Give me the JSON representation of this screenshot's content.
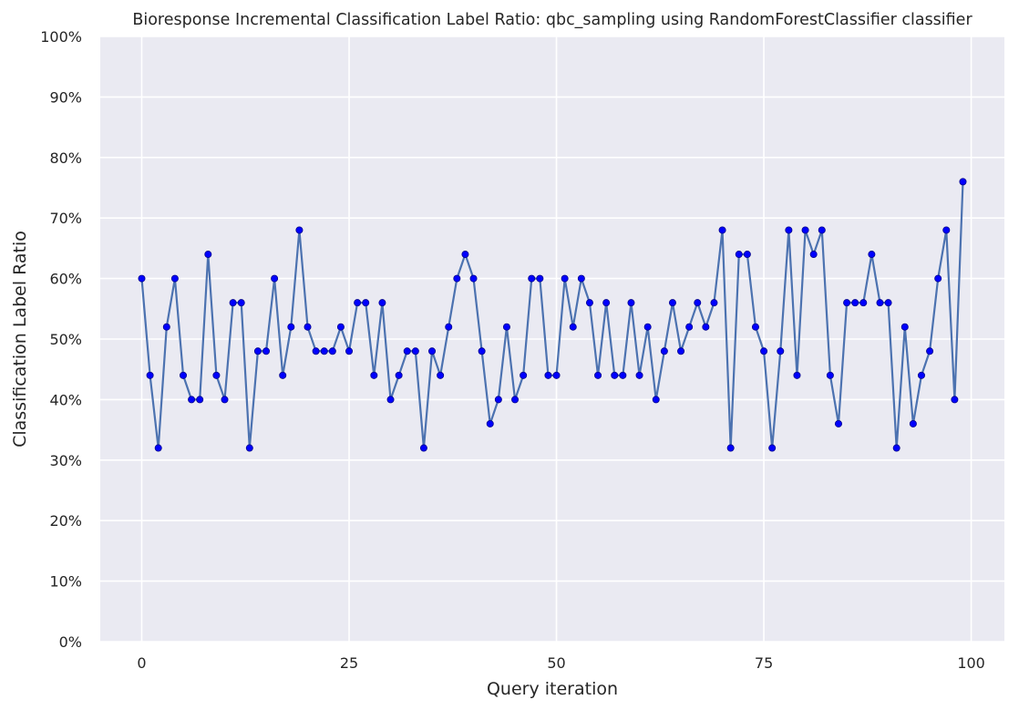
{
  "chart_data": {
    "type": "line",
    "title": "Bioresponse Incremental Classification Label Ratio: qbc_sampling using RandomForestClassifier classifier",
    "xlabel": "Query iteration",
    "ylabel": "Classification Label Ratio",
    "xlim": [
      -5,
      104
    ],
    "ylim": [
      0,
      1
    ],
    "x_ticks": [
      0,
      25,
      50,
      75,
      100
    ],
    "y_ticks": [
      0,
      0.1,
      0.2,
      0.3,
      0.4,
      0.5,
      0.6,
      0.7,
      0.8,
      0.9,
      1.0
    ],
    "x_tick_labels": [
      "0",
      "25",
      "50",
      "75",
      "100"
    ],
    "y_tick_labels": [
      "0%",
      "10%",
      "20%",
      "30%",
      "40%",
      "50%",
      "60%",
      "70%",
      "80%",
      "90%",
      "100%"
    ],
    "grid": true,
    "line_color": "#4c72b0",
    "marker_color": "#0000ff",
    "background_color": "#eaeaf2",
    "values": [
      0.6,
      0.44,
      0.32,
      0.52,
      0.6,
      0.44,
      0.4,
      0.4,
      0.64,
      0.44,
      0.4,
      0.56,
      0.56,
      0.32,
      0.48,
      0.48,
      0.6,
      0.44,
      0.52,
      0.68,
      0.52,
      0.48,
      0.48,
      0.48,
      0.52,
      0.48,
      0.56,
      0.56,
      0.44,
      0.56,
      0.4,
      0.44,
      0.48,
      0.48,
      0.32,
      0.48,
      0.44,
      0.52,
      0.6,
      0.64,
      0.6,
      0.48,
      0.36,
      0.4,
      0.52,
      0.4,
      0.44,
      0.6,
      0.6,
      0.44,
      0.44,
      0.6,
      0.52,
      0.6,
      0.56,
      0.44,
      0.56,
      0.44,
      0.44,
      0.56,
      0.44,
      0.52,
      0.4,
      0.48,
      0.56,
      0.48,
      0.52,
      0.56,
      0.52,
      0.56,
      0.68,
      0.32,
      0.64,
      0.64,
      0.52,
      0.48,
      0.32,
      0.48,
      0.68,
      0.44,
      0.68,
      0.64,
      0.68,
      0.44,
      0.36,
      0.56,
      0.56,
      0.56,
      0.64,
      0.56,
      0.56,
      0.32,
      0.52,
      0.36,
      0.44,
      0.48,
      0.6,
      0.68,
      0.4,
      0.76
    ]
  }
}
